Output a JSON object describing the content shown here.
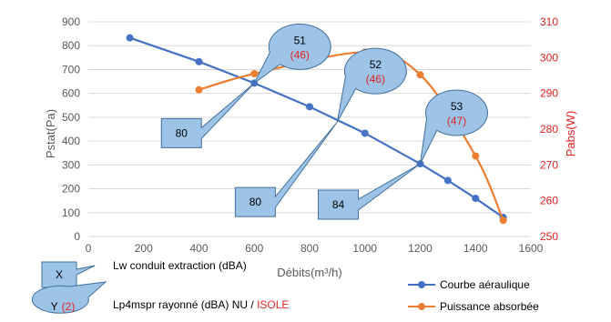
{
  "chart_data": {
    "type": "line",
    "xlabel": "Débits(m³/h)",
    "ylabel": "Pstat(Pa)",
    "y2label": "Pabs(W)",
    "xlim": [
      0,
      1600
    ],
    "ylim": [
      0,
      900
    ],
    "y2lim": [
      250,
      310
    ],
    "xticks": [
      "0",
      "200",
      "400",
      "600",
      "800",
      "1000",
      "1200",
      "1400",
      "1600"
    ],
    "yticks": [
      "0",
      "100",
      "200",
      "300",
      "400",
      "500",
      "600",
      "700",
      "800",
      "900"
    ],
    "y2ticks": [
      "250",
      "260",
      "270",
      "280",
      "290",
      "300",
      "310"
    ],
    "grid": "horizontal",
    "colors": {
      "primary": "#4472c4",
      "secondary": "#ed7d31",
      "accent_text": "#e32222",
      "callout_fill": "#9dc3e6",
      "callout_stroke": "#41719c",
      "grid": "#d9d9d9"
    },
    "series": [
      {
        "name": "Courbe aéraulique",
        "axis": "left",
        "x": [
          150,
          400,
          600,
          800,
          1000,
          1200,
          1300,
          1400,
          1500
        ],
        "y": [
          833,
          733,
          643,
          544,
          433,
          305,
          235,
          160,
          80
        ]
      },
      {
        "name": "Puissance absorbée",
        "axis": "right",
        "x": [
          400,
          600,
          1000,
          1200,
          1400,
          1500
        ],
        "y": [
          291,
          295.5,
          301.5,
          295.2,
          272.5,
          254.5
        ]
      }
    ],
    "annotations": [
      {
        "type": "box",
        "text": "80",
        "point": [
          600,
          643
        ]
      },
      {
        "type": "bubble",
        "value": "51",
        "sub": "(46)",
        "point": [
          600,
          643
        ]
      },
      {
        "type": "box",
        "text": "80",
        "point": [
          900,
          480
        ]
      },
      {
        "type": "bubble",
        "value": "52",
        "sub": "(46)",
        "point": [
          900,
          480
        ]
      },
      {
        "type": "box",
        "text": "84",
        "point": [
          1200,
          305
        ]
      },
      {
        "type": "bubble",
        "value": "53",
        "sub": "(47)",
        "point": [
          1200,
          305
        ]
      }
    ],
    "key": {
      "box_symbol": "X",
      "box_label": "Lw conduit extraction (dBA)",
      "bubble_symbol": "Y",
      "bubble_symbol_sub": "(2)",
      "bubble_label_main": "Lp4mspr rayonné (dBA) NU / ",
      "bubble_label_accent": "ISOLE"
    },
    "legend_position": "bottom-right"
  }
}
